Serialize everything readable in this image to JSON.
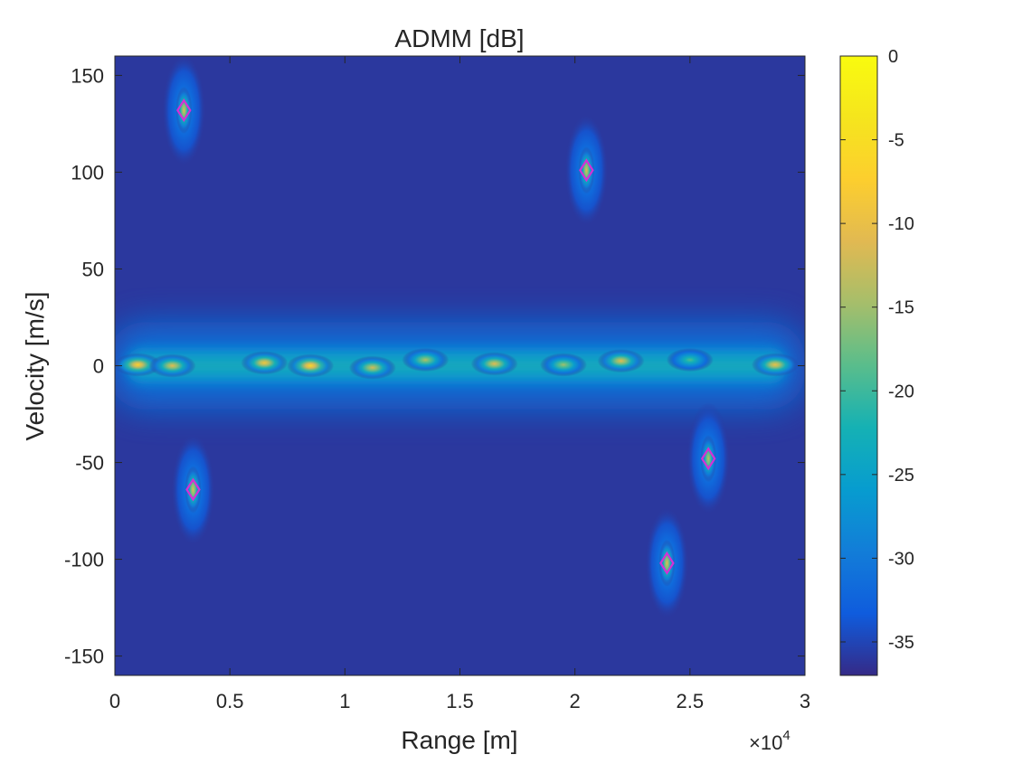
{
  "chart_data": {
    "type": "heatmap",
    "title": "ADMM [dB]",
    "xlabel": "Range [m]",
    "ylabel": "Velocity [m/s]",
    "x_exponent_label": {
      "base": "×10",
      "exp": "4"
    },
    "xlim": [
      0,
      30000
    ],
    "ylim": [
      -160,
      160
    ],
    "x_ticks": [
      {
        "value": 0,
        "label": "0"
      },
      {
        "value": 5000,
        "label": "0.5"
      },
      {
        "value": 10000,
        "label": "1"
      },
      {
        "value": 15000,
        "label": "1.5"
      },
      {
        "value": 20000,
        "label": "2"
      },
      {
        "value": 25000,
        "label": "2.5"
      },
      {
        "value": 30000,
        "label": "3"
      }
    ],
    "y_ticks": [
      {
        "value": 150,
        "label": "150"
      },
      {
        "value": 100,
        "label": "100"
      },
      {
        "value": 50,
        "label": "50"
      },
      {
        "value": 0,
        "label": "0"
      },
      {
        "value": -50,
        "label": "-50"
      },
      {
        "value": -100,
        "label": "-100"
      },
      {
        "value": -150,
        "label": "-150"
      }
    ],
    "colorbar": {
      "range": [
        -37,
        0
      ],
      "ticks": [
        {
          "value": 0,
          "label": "0"
        },
        {
          "value": -5,
          "label": "-5"
        },
        {
          "value": -10,
          "label": "-10"
        },
        {
          "value": -15,
          "label": "-15"
        },
        {
          "value": -20,
          "label": "-20"
        },
        {
          "value": -25,
          "label": "-25"
        },
        {
          "value": -30,
          "label": "-30"
        },
        {
          "value": -35,
          "label": "-35"
        }
      ],
      "colormap": "parula"
    },
    "background_db": -36,
    "clutter_ridge": {
      "velocity": 0,
      "x_range": [
        500,
        29200
      ],
      "peaks": [
        {
          "x": 1000,
          "y": 0.5,
          "db": -7
        },
        {
          "x": 2500,
          "y": 0,
          "db": -11
        },
        {
          "x": 6500,
          "y": 1.5,
          "db": -9
        },
        {
          "x": 8500,
          "y": 0,
          "db": -6
        },
        {
          "x": 11200,
          "y": -1,
          "db": -12
        },
        {
          "x": 13500,
          "y": 3,
          "db": -14
        },
        {
          "x": 16500,
          "y": 1,
          "db": -11
        },
        {
          "x": 19500,
          "y": 0.5,
          "db": -15
        },
        {
          "x": 22000,
          "y": 2.5,
          "db": -11
        },
        {
          "x": 25000,
          "y": 3,
          "db": -19
        },
        {
          "x": 28700,
          "y": 0.5,
          "db": -10
        }
      ]
    },
    "targets": [
      {
        "x": 3000,
        "y": 132,
        "db": -11
      },
      {
        "x": 3400,
        "y": -64,
        "db": -11
      },
      {
        "x": 20500,
        "y": 101,
        "db": -11
      },
      {
        "x": 24000,
        "y": -102,
        "db": -11
      },
      {
        "x": 25800,
        "y": -48,
        "db": -13
      }
    ],
    "marker_color": "#d62fd6"
  }
}
